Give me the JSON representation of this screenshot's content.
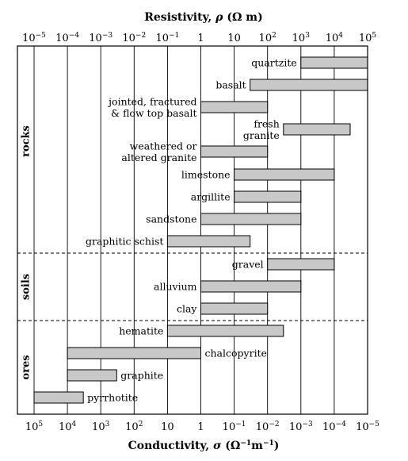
{
  "chart_data": {
    "type": "bar",
    "title": "",
    "xlabel_top": {
      "text": "Resistivity, ",
      "symbol": "ρ",
      "unit": " (Ω m)"
    },
    "xlabel_bottom": {
      "text": "Conductivity, ",
      "symbol": "σ",
      "unit_open": " (Ω",
      "unit_exp1": "−1",
      "unit_mid": "m",
      "unit_exp2": "−1",
      "unit_close": ")"
    },
    "top_axis_exponents": [
      -5,
      -4,
      -3,
      -2,
      -1,
      0,
      1,
      2,
      3,
      4,
      5
    ],
    "bottom_axis_exponents": [
      5,
      4,
      3,
      2,
      1,
      0,
      -1,
      -2,
      -3,
      -4,
      -5
    ],
    "xscale": "log",
    "xlim_resistivity": [
      1e-05,
      100000
    ],
    "grid": "vertical",
    "groups": [
      {
        "name": "rocks",
        "items": [
          {
            "label": [
              "quartzite"
            ],
            "min": 1000,
            "max": 100000,
            "label_side": "left"
          },
          {
            "label": [
              "basalt"
            ],
            "min": 30,
            "max": 100000,
            "label_side": "left"
          },
          {
            "label": [
              "jointed, fractured",
              "& flow top basalt"
            ],
            "min": 1,
            "max": 100,
            "label_side": "left"
          },
          {
            "label": [
              "fresh",
              "granite"
            ],
            "min": 300,
            "max": 30000,
            "label_side": "left"
          },
          {
            "label": [
              "weathered or",
              "altered granite"
            ],
            "min": 1,
            "max": 100,
            "label_side": "left"
          },
          {
            "label": [
              "limestone"
            ],
            "min": 10,
            "max": 10000,
            "label_side": "left"
          },
          {
            "label": [
              "argillite"
            ],
            "min": 10,
            "max": 1000,
            "label_side": "left"
          },
          {
            "label": [
              "sandstone"
            ],
            "min": 1,
            "max": 1000,
            "label_side": "left"
          },
          {
            "label": [
              "graphitic schist"
            ],
            "min": 0.1,
            "max": 30,
            "label_side": "left"
          }
        ]
      },
      {
        "name": "soils",
        "items": [
          {
            "label": [
              "gravel"
            ],
            "min": 100,
            "max": 10000,
            "label_side": "left"
          },
          {
            "label": [
              "alluvium"
            ],
            "min": 1,
            "max": 1000,
            "label_side": "left"
          },
          {
            "label": [
              "clay"
            ],
            "min": 1,
            "max": 100,
            "label_side": "left"
          }
        ]
      },
      {
        "name": "ores",
        "items": [
          {
            "label": [
              "hematite"
            ],
            "min": 0.1,
            "max": 300,
            "label_side": "left"
          },
          {
            "label": [
              "chalcopyrite"
            ],
            "min": 0.0001,
            "max": 1,
            "label_side": "right"
          },
          {
            "label": [
              "graphite"
            ],
            "min": 0.0001,
            "max": 0.003,
            "label_side": "right"
          },
          {
            "label": [
              "pyrrhotite"
            ],
            "min": 1e-05,
            "max": 0.0003,
            "label_side": "right"
          }
        ]
      }
    ],
    "colors": {
      "bar_fill": "#c8c8c8",
      "stroke": "#000000",
      "grid": "#000000",
      "background": "#ffffff"
    }
  }
}
